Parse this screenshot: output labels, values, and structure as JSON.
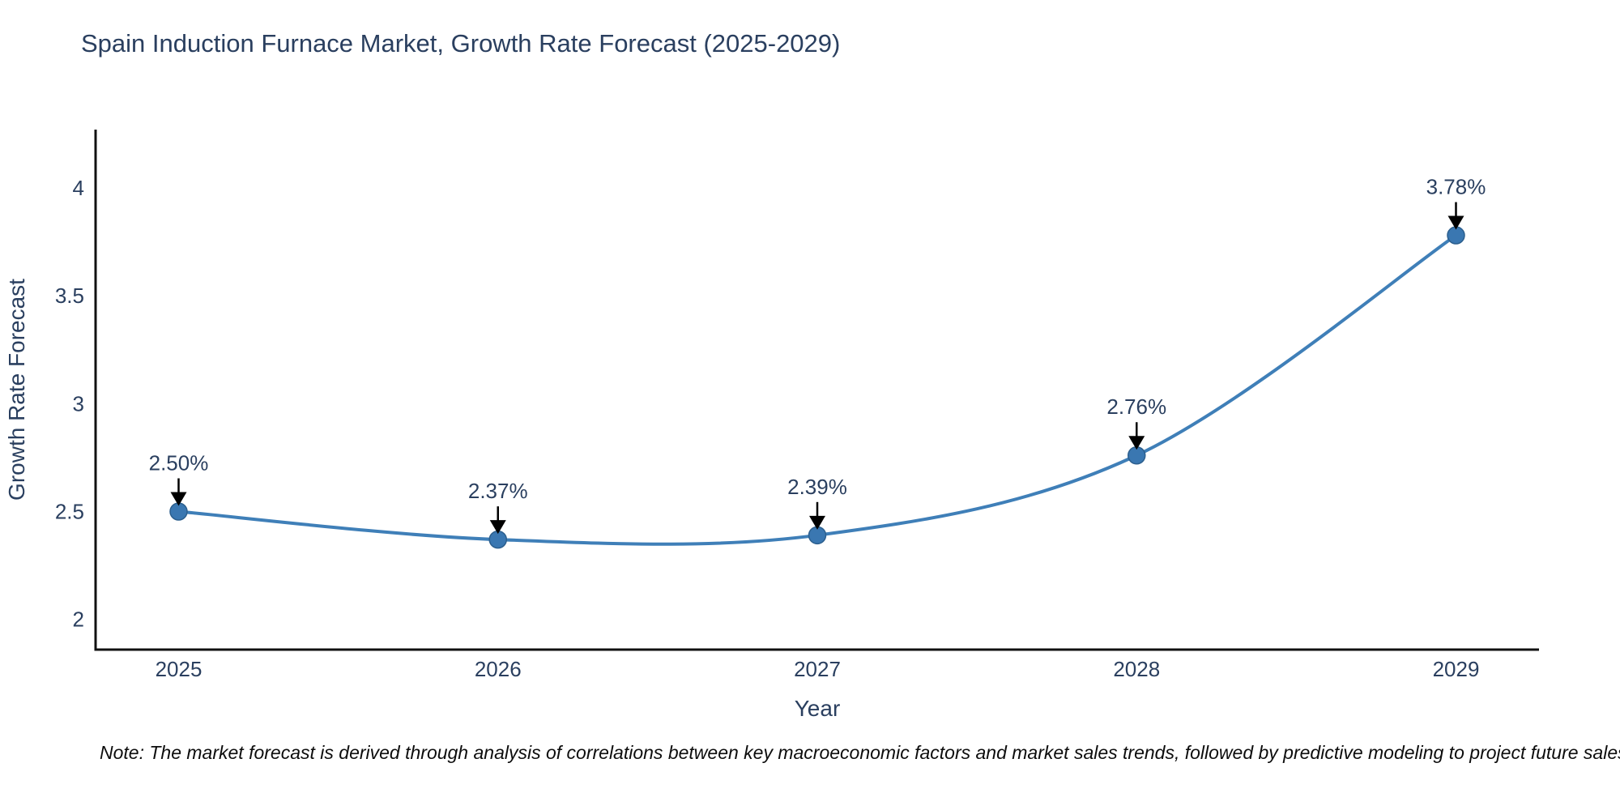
{
  "chart": {
    "title": "Spain Induction Furnace Market, Growth Rate Forecast (2025-2029)"
  },
  "note": "Note: The market forecast is derived through analysis of correlations between key macroeconomic factors and market sales trends, followed by predictive modeling to project future sales",
  "chart_data": {
    "type": "line",
    "title": "Spain Induction Furnace Market, Growth Rate Forecast (2025-2029)",
    "x": [
      2025,
      2026,
      2027,
      2028,
      2029
    ],
    "y": [
      2.5,
      2.37,
      2.39,
      2.76,
      3.78
    ],
    "series": [
      {
        "name": "Growth Rate Forecast",
        "values": [
          2.5,
          2.37,
          2.39,
          2.76,
          3.78
        ]
      }
    ],
    "point_labels": [
      "2.50%",
      "2.37%",
      "2.39%",
      "2.76%",
      "3.78%"
    ],
    "xlabel": "Year",
    "ylabel": "Growth Rate Forecast",
    "xticks": [
      "2025",
      "2026",
      "2027",
      "2028",
      "2029"
    ],
    "yticks": [
      "2",
      "2.5",
      "3",
      "3.5",
      "4"
    ],
    "ytick_values": [
      2,
      2.5,
      3,
      3.5,
      4
    ],
    "xtick_values": [
      2025,
      2026,
      2027,
      2028,
      2029
    ],
    "xlim": [
      2024.74,
      2029.26
    ],
    "ylim": [
      1.86,
      4.27
    ],
    "grid": false,
    "legend": false,
    "curve": "spline",
    "colors": {
      "line": "#3f7fb8",
      "marker_fill": "#3a77b1",
      "marker_edge": "#2c5f8e",
      "annotation_text": "#2a3f5f",
      "annotation_arrow": "#000000",
      "axis_line": "#111111",
      "tick_text": "#2a3f5f",
      "title_text": "#2a3f5f",
      "note_text": "#0d0d0d",
      "background": "#ffffff"
    }
  }
}
